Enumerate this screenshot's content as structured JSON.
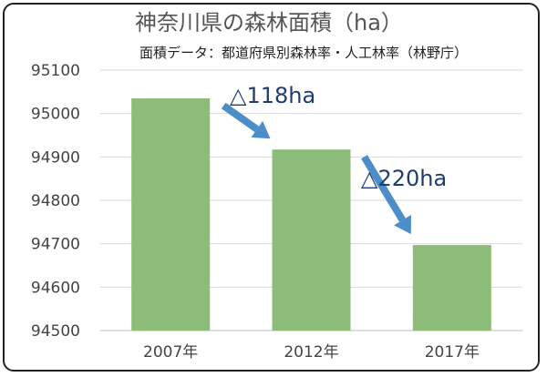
{
  "chart_data": {
    "type": "bar",
    "title": "神奈川県の森林面積（ha）",
    "subtitle": "面積データ：都道府県別森林率・人工林率（林野庁）",
    "categories": [
      "2007年",
      "2012年",
      "2017年"
    ],
    "values": [
      95035,
      94917,
      94697
    ],
    "ylim": [
      94500,
      95100
    ],
    "yticks": [
      94500,
      94600,
      94700,
      94800,
      94900,
      95000,
      95100
    ],
    "grid": true,
    "bar_color": "#8dbb78",
    "annotations": [
      {
        "text": "△118ha",
        "from": "2007年",
        "to": "2012年"
      },
      {
        "text": "△220ha",
        "from": "2012年",
        "to": "2017年"
      }
    ],
    "arrow_color": "#4d8ec9"
  }
}
